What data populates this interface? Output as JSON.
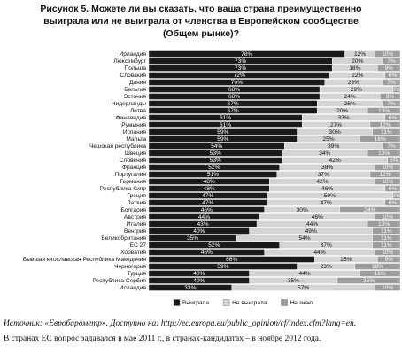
{
  "chart_data": {
    "type": "stacked-bar-horizontal",
    "title": "Рисунок 5. Можете ли вы сказать, что ваша страна преимущественно выиграла или не выиграла от членства в Европейском сообществе (Общем рынке)?",
    "categories": [
      "Ирландия",
      "Люксембург",
      "Польша",
      "Словакия",
      "Дания",
      "Бельгия",
      "Эстония",
      "Нидерланды",
      "Литва",
      "Финляндия",
      "Румыния",
      "Испания",
      "Мальта",
      "Чешская республика",
      "Швеция",
      "Словения",
      "Франция",
      "Португалия",
      "Германия",
      "Республика Кипр",
      "Греция",
      "Латвия",
      "Болгария",
      "Австрия",
      "Италия",
      "Венгрия",
      "Великобритания",
      "ЕС 27",
      "Хорватия",
      "Бывшая югославская Республика Македония",
      "Черногория",
      "Турция",
      "Республика Сербия",
      "Исландия"
    ],
    "series": [
      {
        "name": "Выиграла",
        "color": "#1a1a1a",
        "label_color": "#ffffff",
        "values": [
          78,
          73,
          73,
          72,
          70,
          68,
          68,
          67,
          67,
          61,
          61,
          59,
          59,
          54,
          53,
          53,
          52,
          51,
          48,
          48,
          47,
          47,
          46,
          44,
          43,
          40,
          35,
          52,
          46,
          66,
          59,
          40,
          40,
          33
        ],
        "value_labels": [
          "78%",
          "73%",
          "73%",
          "72%",
          "70%",
          "68%",
          "68%",
          "67%",
          "67%",
          "61%",
          "61%",
          "59%",
          "59%",
          "54%",
          "53%",
          "53%",
          "52%",
          "51%",
          "48%",
          "48%",
          "47%",
          "47%",
          "46%",
          "44%",
          "43%",
          "40%",
          "35%",
          "52%",
          "46%",
          "66%",
          "59%",
          "40%",
          "40%",
          "33%"
        ]
      },
      {
        "name": "Не выиграла",
        "color": "#d4d4d4",
        "label_color": "#111111",
        "values": [
          12,
          20,
          18,
          22,
          23,
          29,
          24,
          26,
          20,
          33,
          27,
          30,
          25,
          39,
          34,
          42,
          38,
          37,
          42,
          46,
          50,
          47,
          30,
          46,
          44,
          49,
          54,
          37,
          44,
          25,
          23,
          44,
          35,
          57
        ],
        "value_labels": [
          "12%",
          "20%",
          "18%",
          "22%",
          "23%",
          "29%",
          "24%",
          "26%",
          "20%",
          "33%",
          "27%",
          "30%",
          "25%",
          "39%",
          "34%",
          "42%",
          "38%",
          "37%",
          "42%",
          "46%",
          "50%",
          "47%",
          "30%",
          "46%",
          "44%",
          "49%",
          "54%",
          "37%",
          "44%",
          "25%",
          "23%",
          "44%",
          "35%",
          "57%"
        ]
      },
      {
        "name": "Не знаю",
        "color": "#9c9c9c",
        "label_color": "#ffffff",
        "values": [
          10,
          7,
          9,
          6,
          7,
          3,
          8,
          7,
          13,
          6,
          12,
          11,
          16,
          7,
          13,
          5,
          10,
          12,
          10,
          6,
          3,
          6,
          24,
          10,
          13,
          11,
          11,
          11,
          10,
          9,
          18,
          16,
          25,
          10
        ],
        "value_labels": [
          "10%",
          "7%",
          "9%",
          "6%",
          "7%",
          "3%",
          "8%",
          "7%",
          "13%",
          "6%",
          "12%",
          "11%",
          "16%",
          "7%",
          "13%",
          "5%",
          "10%",
          "12%",
          "10%",
          "6%",
          "3%",
          "6%",
          "24%",
          "10%",
          "13%",
          "11%",
          "11%",
          "11%",
          "10%",
          "9%",
          "18%",
          "16%",
          "25%",
          "10%"
        ]
      }
    ],
    "source": "Источник: «Евробарометр». Доступно на: http://ec.europa.eu/public_opinion/cf/index.cfm?lang=en.",
    "note": "В странах ЕС вопрос задавался в мае 2011 г., в странах-кандидатах – в ноябре 2012 года."
  }
}
